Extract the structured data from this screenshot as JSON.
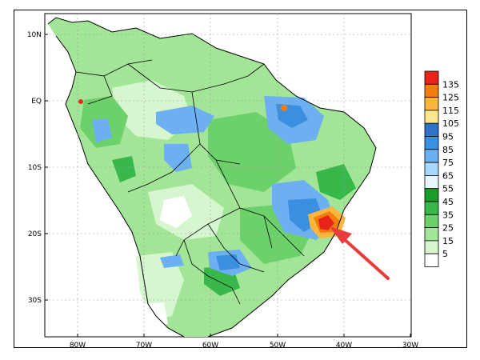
{
  "map": {
    "lat_labels": [
      "10N",
      "EQ",
      "10S",
      "20S",
      "30S"
    ],
    "lon_labels": [
      "80W",
      "70W",
      "60W",
      "50W",
      "40W",
      "30W"
    ]
  },
  "legend": {
    "levels": [
      "135",
      "125",
      "115",
      "105",
      "95",
      "85",
      "75",
      "65",
      "55",
      "45",
      "35",
      "25",
      "15",
      "5"
    ],
    "colors": [
      "#e8231a",
      "#f27d0f",
      "#fab63c",
      "#fde78e",
      "#2f72c9",
      "#3a8fe0",
      "#6cb0f2",
      "#a9d7fb",
      "#e6f7ff",
      "#1e9a2a",
      "#38b84a",
      "#6cd16b",
      "#a3e596",
      "#d6f6cf",
      "#ffffff"
    ]
  },
  "annotation": {
    "arrow_color": "#e83b3b"
  },
  "colors": {
    "land_low": "#d6f6cf",
    "land_mid": "#a3e596",
    "land_green": "#6cd16b",
    "land_dark": "#38b84a",
    "land_darkest": "#1e9a2a"
  }
}
